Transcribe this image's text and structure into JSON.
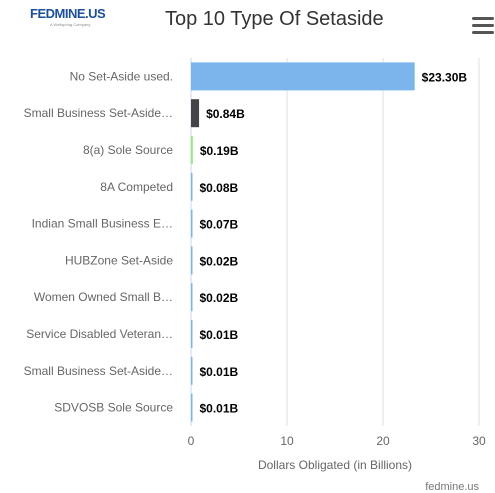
{
  "header": {
    "logo_text": "FEDMINE.US",
    "logo_subtext": "A Wellspring Company",
    "menu_icon": "hamburger-menu-icon"
  },
  "credit": "fedmine.us",
  "colors": {
    "bar_default": "#7cb5ec",
    "bar_second": "#434348",
    "bar_third": "#90ed7d",
    "grid": "#d9e2ea"
  },
  "chart_data": {
    "type": "bar",
    "orientation": "horizontal",
    "title": "Top 10 Type Of Setaside",
    "xlabel": "Dollars Obligated (in Billions)",
    "ylabel": "",
    "xlim": [
      0,
      30
    ],
    "xticks": [
      0,
      10,
      20,
      30
    ],
    "grid": true,
    "legend": "none",
    "categories": [
      "No Set-Aside used.",
      "Small Business Set-Aside…",
      "8(a) Sole Source",
      "8A Competed",
      "Indian Small Business E…",
      "HUBZone Set-Aside",
      "Women Owned Small B…",
      "Service Disabled Veteran…",
      "Small Business Set-Aside…",
      "SDVOSB Sole Source"
    ],
    "values": [
      23.3,
      0.84,
      0.19,
      0.08,
      0.07,
      0.02,
      0.02,
      0.01,
      0.01,
      0.01
    ],
    "value_labels": [
      "$23.30B",
      "$0.84B",
      "$0.19B",
      "$0.08B",
      "$0.07B",
      "$0.02B",
      "$0.02B",
      "$0.01B",
      "$0.01B",
      "$0.01B"
    ],
    "bar_colors": [
      "#7cb5ec",
      "#434348",
      "#90ed7d",
      "#7cb5ec",
      "#7cb5ec",
      "#7cb5ec",
      "#7cb5ec",
      "#7cb5ec",
      "#7cb5ec",
      "#7cb5ec"
    ]
  }
}
